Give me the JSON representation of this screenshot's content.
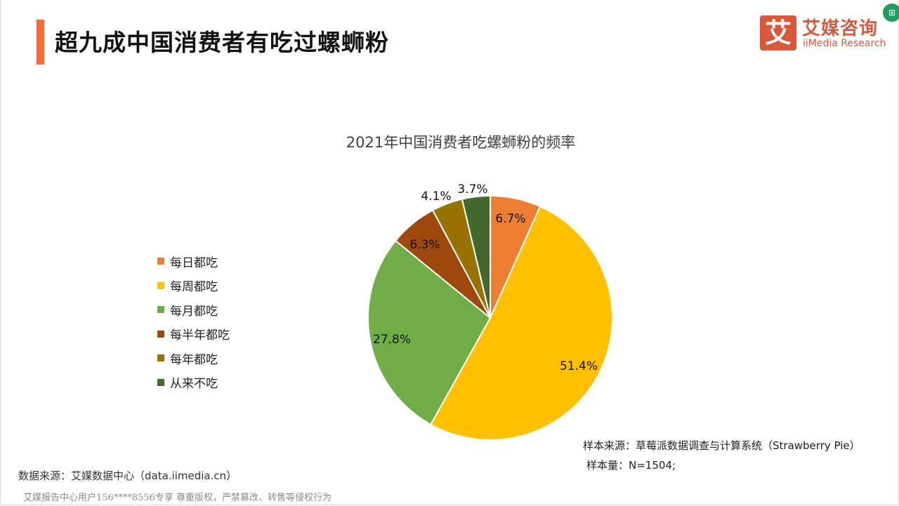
{
  "header": {
    "title": "超九成中国消费者有吃过螺蛳粉",
    "accent_color": "#f26b3a"
  },
  "logo": {
    "glyph": "艾",
    "name_cn": "艾媒咨询",
    "name_en": "iiMedia Research",
    "color": "#d9573b"
  },
  "corner_button": {
    "icon": "table-export-icon",
    "glyph": "⊞"
  },
  "chart_data": {
    "type": "pie",
    "title": "2021年中国消费者吃螺蛳粉的频率",
    "categories": [
      "每日都吃",
      "每周都吃",
      "每月都吃",
      "每半年都吃",
      "每年都吃",
      "从来不吃"
    ],
    "values": [
      6.7,
      51.4,
      27.8,
      6.3,
      4.1,
      3.7
    ],
    "labels": [
      "6.7%",
      "51.4%",
      "27.8%",
      "6.3%",
      "4.1%",
      "3.7%"
    ],
    "colors": [
      "#ed7d31",
      "#ffc000",
      "#70ad47",
      "#9e480e",
      "#997300",
      "#43682b"
    ],
    "unit": "%",
    "start_angle_deg": 0,
    "direction": "clockwise",
    "legend_position": "left"
  },
  "legend": {
    "items": [
      {
        "label": "每日都吃",
        "color": "#ed7d31"
      },
      {
        "label": "每周都吃",
        "color": "#ffc000"
      },
      {
        "label": "每月都吃",
        "color": "#70ad47"
      },
      {
        "label": "每半年都吃",
        "color": "#9e480e"
      },
      {
        "label": "每年都吃",
        "color": "#997300"
      },
      {
        "label": "从来不吃",
        "color": "#43682b"
      }
    ]
  },
  "notes": {
    "sample_source": "样本来源：草莓派数据调查与计算系统（Strawberry Pie）",
    "sample_size": "样本量：N=1504;"
  },
  "footer": {
    "data_source": "数据来源：艾媒数据中心（data.iimedia.cn）",
    "copyright": "艾媒报告中心用户156****8556专享 尊重版权，严禁篡改、转售等侵权行为"
  }
}
